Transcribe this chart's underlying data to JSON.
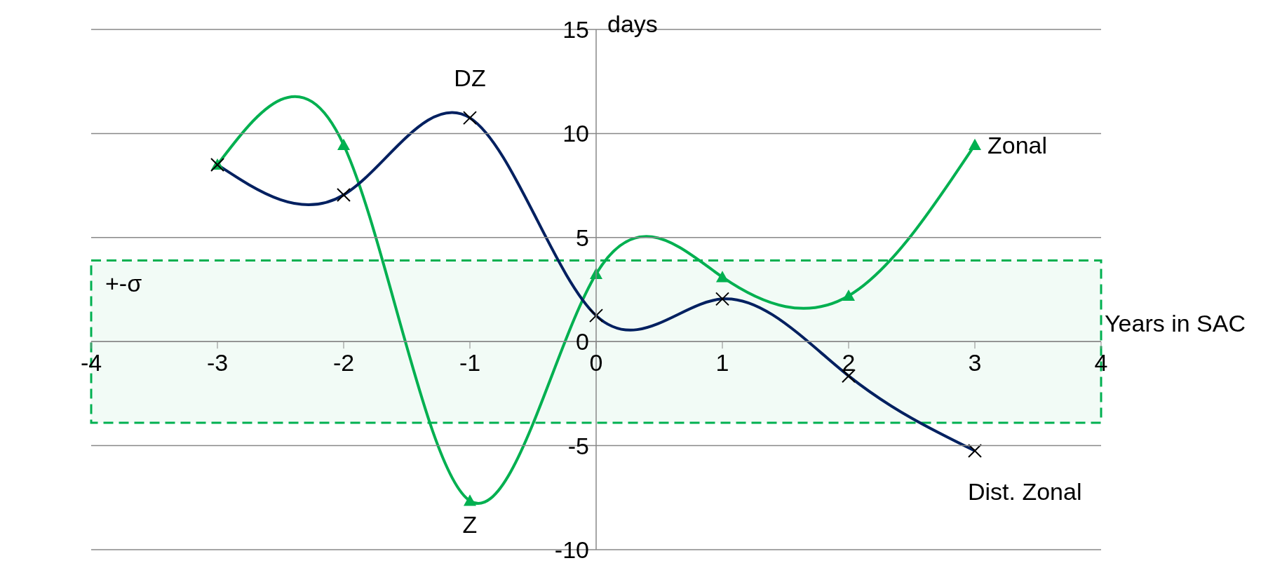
{
  "chart_data": {
    "type": "line",
    "xlabel": "Years in SAC",
    "ylabel": "days",
    "xlim": [
      -4,
      4
    ],
    "xticks": [
      -4,
      -3,
      -2,
      -1,
      0,
      1,
      2,
      3,
      4
    ],
    "ylim": [
      -10,
      15
    ],
    "yticks": [
      -10,
      -5,
      0,
      5,
      10,
      15
    ],
    "grid": "y",
    "legend": false,
    "series": [
      {
        "name": "Zonal",
        "color": "#00b050",
        "marker": "triangle",
        "x": [
          -3,
          -2,
          -1,
          0,
          1,
          2,
          3
        ],
        "values": [
          8.5,
          9.45,
          -7.65,
          3.25,
          3.1,
          2.2,
          9.45
        ]
      },
      {
        "name": "Dist. Zonal",
        "color": "#002060",
        "marker": "cross",
        "x": [
          -3,
          -2,
          -1,
          0,
          1,
          2,
          3
        ],
        "values": [
          8.5,
          7.05,
          10.75,
          1.25,
          2.05,
          -1.65,
          -5.25
        ]
      }
    ],
    "bands": [
      {
        "axis": "y",
        "from": -3.9,
        "to": 3.9,
        "label": "+-σ",
        "color": "#00b050"
      }
    ],
    "annotations": [
      "DZ",
      "Z"
    ]
  }
}
